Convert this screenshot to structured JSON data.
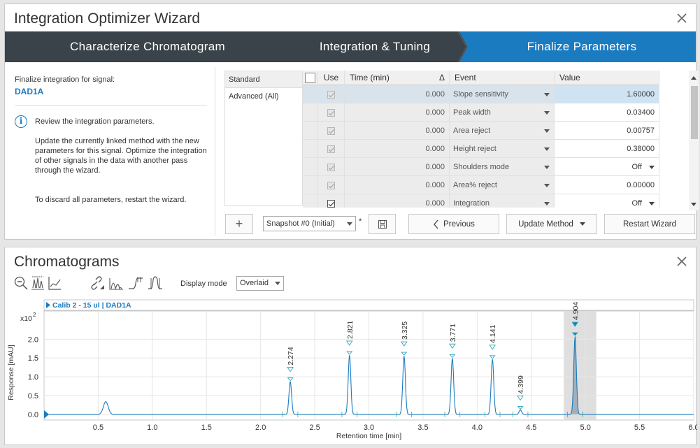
{
  "wizard": {
    "title": "Integration Optimizer Wizard",
    "steps": [
      "Characterize Chromatogram",
      "Integration & Tuning",
      "Finalize Parameters"
    ],
    "active_step": 2,
    "left": {
      "label": "Finalize integration for signal:",
      "signal": "DAD1A",
      "info_icon": "info-icon",
      "p1": "Review the integration parameters.",
      "p2": "Update the currently linked method with the new parameters for this signal. Optimize the integration of other signals in the data with another pass through the wizard.",
      "p3": "To discard all parameters, restart the wizard."
    },
    "modes": [
      "Standard",
      "Advanced (All)"
    ],
    "grid": {
      "headers": {
        "use": "Use",
        "time": "Time (min)",
        "sort": "Δ",
        "event": "Event",
        "value": "Value"
      },
      "rows": [
        {
          "use": true,
          "enabled": false,
          "time": "0.000",
          "event": "Slope sensitivity",
          "value": "1.60000",
          "dropdown": false
        },
        {
          "use": true,
          "enabled": false,
          "time": "0.000",
          "event": "Peak width",
          "value": "0.03400",
          "dropdown": false
        },
        {
          "use": true,
          "enabled": false,
          "time": "0.000",
          "event": "Area reject",
          "value": "0.00757",
          "dropdown": false
        },
        {
          "use": true,
          "enabled": false,
          "time": "0.000",
          "event": "Height reject",
          "value": "0.38000",
          "dropdown": false
        },
        {
          "use": true,
          "enabled": false,
          "time": "0.000",
          "event": "Shoulders mode",
          "value": "Off",
          "dropdown": true
        },
        {
          "use": true,
          "enabled": false,
          "time": "0.000",
          "event": "Area% reject",
          "value": "0.00000",
          "dropdown": false
        },
        {
          "use": true,
          "enabled": true,
          "time": "0.000",
          "event": "Integration",
          "value": "Off",
          "dropdown": true
        }
      ]
    },
    "bottom": {
      "add": "+",
      "snapshot": "Snapshot #0 (Initial)",
      "modified": "*",
      "save_icon": "save-icon",
      "previous": "Previous",
      "update": "Update Method",
      "restart": "Restart Wizard"
    }
  },
  "chromatograms": {
    "title": "Chromatograms",
    "toolbar_icons": [
      "zoom-out-icon",
      "overlay-peaks-icon",
      "baseline-icon",
      "link-icon",
      "peak-area-icon",
      "peak-shape-icon",
      "peak-window-icon"
    ],
    "display_mode_label": "Display mode",
    "display_mode": "Overlaid",
    "chart_data": {
      "type": "line",
      "trace_label": "Calib 2 - 15 ul | DAD1A",
      "xlabel": "Retention time [min]",
      "ylabel": "Response [mAU]",
      "y_multiplier": "x10",
      "y_exponent": "2",
      "xlim": [
        0.0,
        6.0
      ],
      "ylim": [
        -0.15,
        2.75
      ],
      "x_ticks": [
        "0.5",
        "1.0",
        "1.5",
        "2.0",
        "2.5",
        "3.0",
        "3.5",
        "4.0",
        "4.5",
        "5.0",
        "5.5",
        "6.0"
      ],
      "y_ticks": [
        "0.0",
        "0.5",
        "1.0",
        "1.5",
        "2.0"
      ],
      "series_color": "#1b7bc0",
      "peaks": [
        {
          "rt": 0.57,
          "height": 0.34,
          "label": ""
        },
        {
          "rt": 2.274,
          "height": 0.88,
          "label": "2.274"
        },
        {
          "rt": 2.821,
          "height": 1.58,
          "label": "2.821"
        },
        {
          "rt": 3.325,
          "height": 1.56,
          "label": "3.325"
        },
        {
          "rt": 3.771,
          "height": 1.5,
          "label": "3.771"
        },
        {
          "rt": 4.141,
          "height": 1.47,
          "label": "4.141"
        },
        {
          "rt": 4.399,
          "height": 0.12,
          "label": "4.399"
        },
        {
          "rt": 4.904,
          "height": 2.08,
          "label": "4.904"
        }
      ],
      "selected_peak": "4.904",
      "selected_window": [
        4.8,
        5.1
      ]
    }
  }
}
